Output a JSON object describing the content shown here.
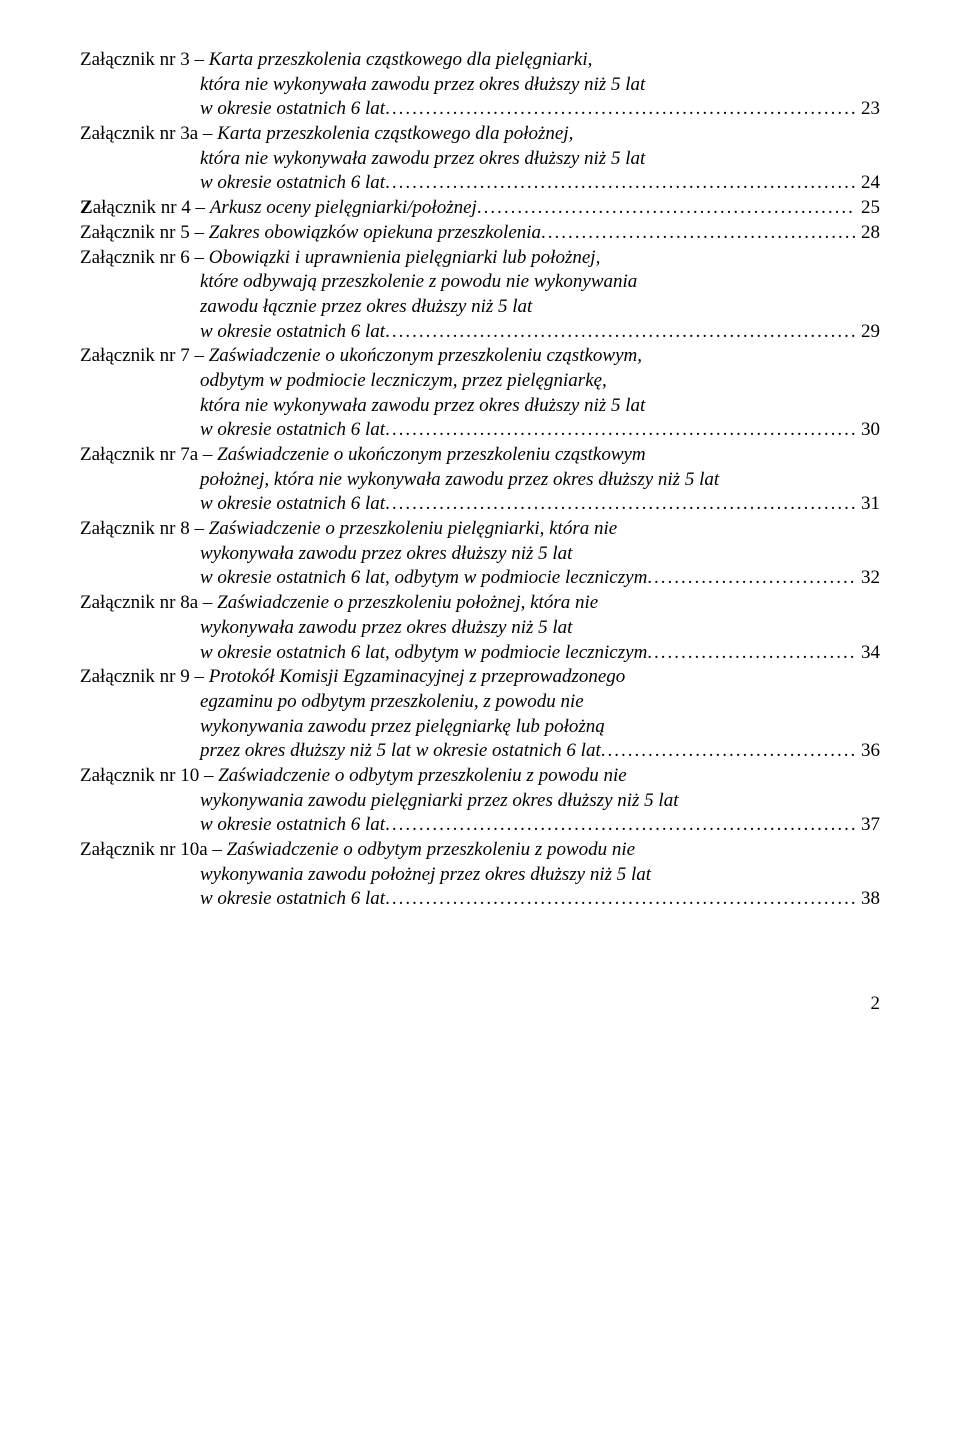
{
  "toc": {
    "entries": [
      {
        "lines": [
          {
            "plain": "Załącznik nr 3 – ",
            "italic": "Karta przeszkolenia cząstkowego dla pielęgniarki,",
            "hang": false
          },
          {
            "italic": "która nie wykonywała zawodu przez okres dłuższy niż 5 lat",
            "hang": true
          },
          {
            "italic": "w okresie ostatnich 6 lat",
            "hang": true,
            "page": "23"
          }
        ]
      },
      {
        "lines": [
          {
            "plain": "Załącznik nr 3a – ",
            "italic": "Karta przeszkolenia cząstkowego dla położnej,",
            "hang": false
          },
          {
            "italic": "która nie wykonywała zawodu przez okres dłuższy niż 5 lat",
            "hang": true
          },
          {
            "italic": "w okresie ostatnich 6 lat",
            "hang": true,
            "page": "24"
          }
        ]
      },
      {
        "lines": [
          {
            "plain_bold_first": "Z",
            "plain_rest": "ałącznik nr 4 – ",
            "italic": "Arkusz oceny pielęgniarki/położnej",
            "hang": false,
            "page": "25"
          }
        ]
      },
      {
        "lines": [
          {
            "plain": "Załącznik nr 5 – ",
            "italic": "Zakres obowiązków opiekuna przeszkolenia",
            "hang": false,
            "page": "28"
          }
        ]
      },
      {
        "lines": [
          {
            "plain": "Załącznik nr 6 – ",
            "italic": "Obowiązki i uprawnienia pielęgniarki lub położnej,",
            "hang": false
          },
          {
            "italic": "które odbywają przeszkolenie z powodu nie wykonywania",
            "hang": true
          },
          {
            "italic": "zawodu łącznie przez okres dłuższy niż 5 lat",
            "hang": true
          },
          {
            "italic": "w okresie ostatnich 6 lat",
            "hang": true,
            "page": "29"
          }
        ]
      },
      {
        "lines": [
          {
            "plain": "Załącznik nr 7 – ",
            "italic": "Zaświadczenie o ukończonym przeszkoleniu cząstkowym,",
            "hang": false
          },
          {
            "italic": "odbytym w podmiocie leczniczym, przez pielęgniarkę,",
            "hang": true
          },
          {
            "italic": "która nie wykonywała zawodu przez okres dłuższy niż 5 lat",
            "hang": true
          },
          {
            "italic": "w okresie ostatnich 6 lat",
            "hang": true,
            "page": "30"
          }
        ]
      },
      {
        "lines": [
          {
            "plain": "Załącznik nr 7a – ",
            "italic": "Zaświadczenie o ukończonym przeszkoleniu cząstkowym",
            "hang": false
          },
          {
            "italic": "położnej, która nie wykonywała zawodu przez okres dłuższy niż 5 lat",
            "hang": true
          },
          {
            "italic": "w okresie ostatnich 6 lat",
            "hang": true,
            "page": "31"
          }
        ]
      },
      {
        "lines": [
          {
            "plain": "Załącznik nr 8 – ",
            "italic": "Zaświadczenie o przeszkoleniu pielęgniarki, która nie",
            "hang": false
          },
          {
            "italic": "wykonywała zawodu przez okres dłuższy niż 5 lat",
            "hang": true
          },
          {
            "italic": "w okresie ostatnich 6 lat, odbytym w podmiocie leczniczym",
            "hang": true,
            "page": "32"
          }
        ]
      },
      {
        "lines": [
          {
            "plain": "Załącznik nr 8a – ",
            "italic": "Zaświadczenie o przeszkoleniu położnej, która nie",
            "hang": false
          },
          {
            "italic": "wykonywała zawodu przez okres dłuższy niż 5 lat",
            "hang": true
          },
          {
            "italic": "w okresie ostatnich 6 lat, odbytym w podmiocie leczniczym",
            "hang": true,
            "page": "34"
          }
        ]
      },
      {
        "lines": [
          {
            "plain": "Załącznik nr 9 – ",
            "italic": "Protokół Komisji Egzaminacyjnej z przeprowadzonego",
            "hang": false
          },
          {
            "italic": "egzaminu po odbytym przeszkoleniu, z powodu nie",
            "hang": true
          },
          {
            "italic": "wykonywania zawodu przez pielęgniarkę lub położną",
            "hang": true
          },
          {
            "italic": "przez okres dłuższy niż 5 lat w okresie ostatnich 6 lat",
            "hang": true,
            "page": "36"
          }
        ]
      },
      {
        "lines": [
          {
            "plain": "Załącznik nr 10 – ",
            "italic": "Zaświadczenie o odbytym przeszkoleniu z powodu nie",
            "hang": false
          },
          {
            "italic": "wykonywania zawodu pielęgniarki przez okres dłuższy niż 5 lat",
            "hang": true
          },
          {
            "italic": "w okresie ostatnich 6 lat",
            "hang": true,
            "page": "37"
          }
        ]
      },
      {
        "lines": [
          {
            "plain": "Załącznik nr 10a – ",
            "italic": "Zaświadczenie o odbytym przeszkoleniu z powodu nie",
            "hang": false
          },
          {
            "italic": "wykonywania zawodu położnej przez okres dłuższy niż 5 lat",
            "hang": true
          },
          {
            "italic": "w okresie ostatnich 6 lat",
            "hang": true,
            "page": "38"
          }
        ]
      }
    ]
  },
  "page_number": "2"
}
